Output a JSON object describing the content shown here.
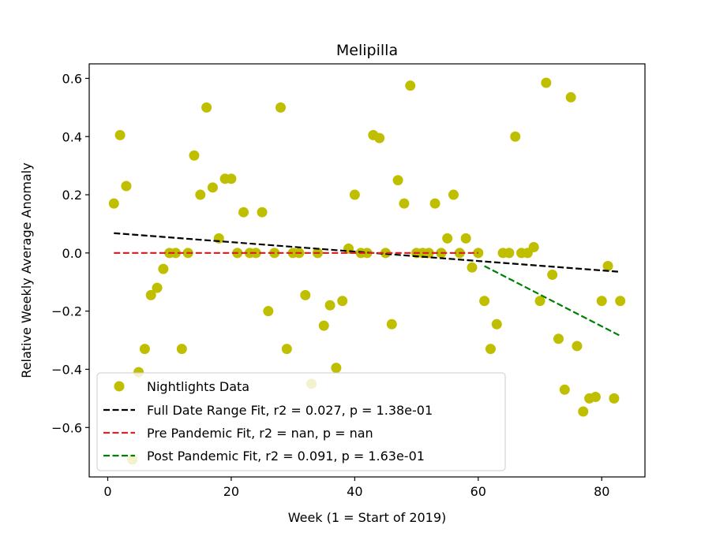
{
  "chart_data": {
    "type": "scatter",
    "title": "Melipilla",
    "xlabel": "Week (1 = Start of 2019)",
    "ylabel": "Relative Weekly Average Anomaly",
    "xlim": [
      -3,
      87
    ],
    "ylim": [
      -0.77,
      0.65
    ],
    "xticks": [
      0,
      20,
      40,
      60,
      80
    ],
    "yticks": [
      -0.6,
      -0.4,
      -0.2,
      0.0,
      0.2,
      0.4,
      0.6
    ],
    "xtick_labels": [
      "0",
      "20",
      "40",
      "60",
      "80"
    ],
    "ytick_labels": [
      "−0.6",
      "−0.4",
      "−0.2",
      "0.0",
      "0.2",
      "0.4",
      "0.6"
    ],
    "grid": false,
    "legend_position": "bottom-left",
    "colors": {
      "points": "#bfbf00",
      "full_fit": "#000000",
      "pre_fit": "#d62728",
      "post_fit": "#008000"
    },
    "series": [
      {
        "name": "Nightlights Data",
        "kind": "points",
        "x": [
          1,
          2,
          3,
          4,
          5,
          6,
          7,
          8,
          9,
          10,
          11,
          12,
          13,
          14,
          15,
          16,
          17,
          18,
          19,
          20,
          21,
          22,
          23,
          24,
          25,
          26,
          27,
          28,
          29,
          30,
          31,
          32,
          33,
          34,
          35,
          36,
          37,
          38,
          39,
          40,
          41,
          42,
          43,
          44,
          45,
          46,
          47,
          48,
          49,
          50,
          51,
          52,
          53,
          54,
          55,
          56,
          57,
          58,
          59,
          60,
          61,
          62,
          63,
          64,
          65,
          66,
          67,
          68,
          69,
          70,
          71,
          72,
          73,
          74,
          75,
          76,
          77,
          78,
          79,
          80,
          81,
          82,
          83
        ],
        "y": [
          0.17,
          0.405,
          0.23,
          -0.71,
          -0.41,
          -0.33,
          -0.145,
          -0.12,
          -0.055,
          0.0,
          0.0,
          -0.33,
          0.0,
          0.335,
          0.2,
          0.5,
          0.225,
          0.05,
          0.255,
          0.255,
          0.0,
          0.14,
          0.0,
          0.0,
          0.14,
          -0.2,
          0.0,
          0.5,
          -0.33,
          0.0,
          0.0,
          -0.145,
          -0.45,
          0.0,
          -0.25,
          -0.18,
          -0.395,
          -0.165,
          0.015,
          0.2,
          0.0,
          0.0,
          0.405,
          0.395,
          0.0,
          -0.245,
          0.25,
          0.17,
          0.575,
          0.0,
          0.0,
          0.0,
          0.17,
          0.0,
          0.05,
          0.2,
          0.0,
          0.05,
          -0.05,
          0.0,
          -0.165,
          -0.33,
          -0.245,
          0.0,
          0.0,
          0.4,
          0.0,
          0.0,
          0.02,
          -0.165,
          0.585,
          -0.075,
          -0.295,
          -0.47,
          0.535,
          -0.32,
          -0.545,
          -0.5,
          -0.495,
          -0.165,
          -0.045,
          -0.5,
          -0.165
        ]
      },
      {
        "name": "Full Date Range Fit, r2 = 0.027, p = 1.38e-01",
        "kind": "line",
        "dash": "dashed",
        "x": [
          1,
          83
        ],
        "y": [
          0.068,
          -0.065
        ]
      },
      {
        "name": "Pre Pandemic Fit, r2 = nan, p = nan",
        "kind": "line",
        "dash": "dashed",
        "x": [
          1,
          60
        ],
        "y": [
          0.0,
          0.0
        ]
      },
      {
        "name": "Post Pandemic Fit, r2 = 0.091, p = 1.63e-01",
        "kind": "line",
        "dash": "dashed",
        "x": [
          61,
          83
        ],
        "y": [
          -0.045,
          -0.285
        ]
      }
    ]
  }
}
